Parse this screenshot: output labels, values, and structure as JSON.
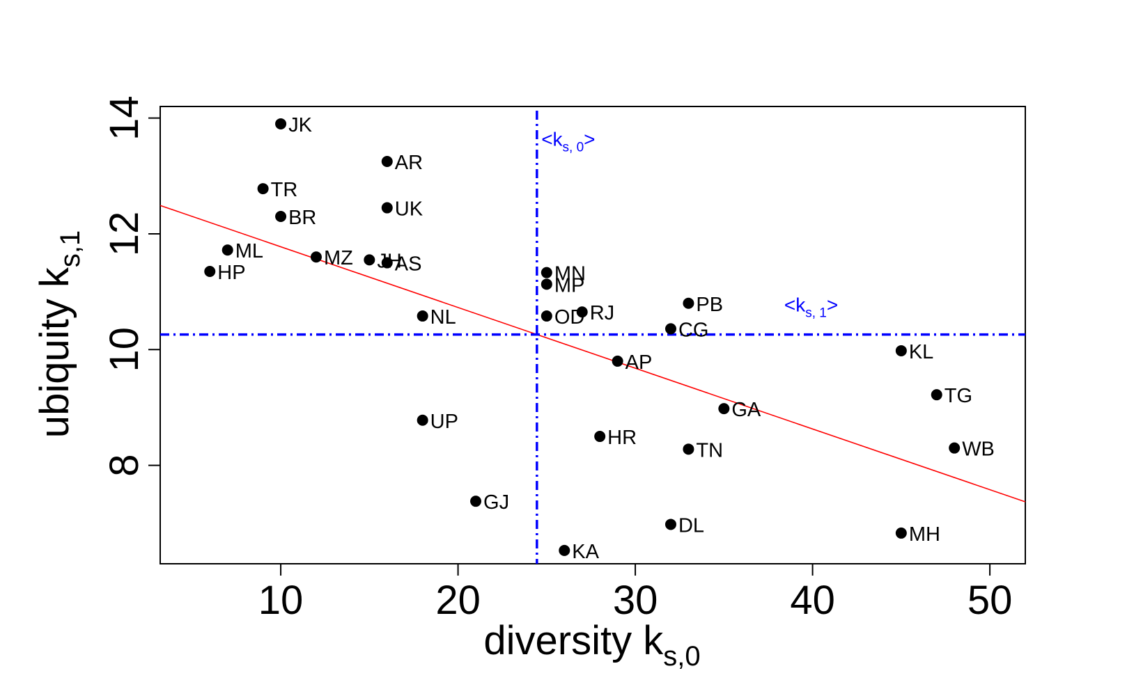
{
  "chart_data": {
    "type": "scatter",
    "title": "",
    "xlabel": {
      "main": "diversity k",
      "sub": "s,0"
    },
    "ylabel": {
      "main": "ubiquity k",
      "sub": "s,1"
    },
    "xlim": [
      3.2,
      52
    ],
    "ylim": [
      6.3,
      14.2
    ],
    "xticks": [
      10,
      20,
      30,
      40,
      50
    ],
    "yticks": [
      8,
      10,
      12,
      14
    ],
    "points": [
      {
        "label": "JK",
        "x": 10,
        "y": 13.9
      },
      {
        "label": "AR",
        "x": 16,
        "y": 13.25
      },
      {
        "label": "TR",
        "x": 9,
        "y": 12.78
      },
      {
        "label": "UK",
        "x": 16,
        "y": 12.45
      },
      {
        "label": "BR",
        "x": 10,
        "y": 12.3
      },
      {
        "label": "ML",
        "x": 7,
        "y": 11.72
      },
      {
        "label": "MZ",
        "x": 12,
        "y": 11.6
      },
      {
        "label": "JH",
        "x": 15,
        "y": 11.55
      },
      {
        "label": "AS",
        "x": 16,
        "y": 11.5
      },
      {
        "label": "HP",
        "x": 6,
        "y": 11.35
      },
      {
        "label": "MN",
        "x": 25,
        "y": 11.33
      },
      {
        "label": "MP",
        "x": 25,
        "y": 11.13
      },
      {
        "label": "PB",
        "x": 33,
        "y": 10.8
      },
      {
        "label": "RJ",
        "x": 27,
        "y": 10.65
      },
      {
        "label": "NL",
        "x": 18,
        "y": 10.58
      },
      {
        "label": "OD",
        "x": 25,
        "y": 10.58
      },
      {
        "label": "CG",
        "x": 32,
        "y": 10.36
      },
      {
        "label": "KL",
        "x": 45,
        "y": 9.98
      },
      {
        "label": "AP",
        "x": 29,
        "y": 9.8
      },
      {
        "label": "TG",
        "x": 47,
        "y": 9.22
      },
      {
        "label": "GA",
        "x": 35,
        "y": 8.98
      },
      {
        "label": "UP",
        "x": 18,
        "y": 8.78
      },
      {
        "label": "HR",
        "x": 28,
        "y": 8.5
      },
      {
        "label": "WB",
        "x": 48,
        "y": 8.3
      },
      {
        "label": "TN",
        "x": 33,
        "y": 8.28
      },
      {
        "label": "GJ",
        "x": 21,
        "y": 7.38
      },
      {
        "label": "DL",
        "x": 32,
        "y": 6.98
      },
      {
        "label": "MH",
        "x": 45,
        "y": 6.83
      },
      {
        "label": "KA",
        "x": 26,
        "y": 6.53
      }
    ],
    "regression_line": {
      "color": "#ff0000",
      "x1": 3.2,
      "y1": 12.49,
      "x2": 52,
      "y2": 7.37
    },
    "mean_lines": [
      {
        "axis": "x",
        "value": 24.45,
        "label": {
          "main": "<k",
          "sub": "s, 0",
          "close": ">"
        },
        "label_x": 24.7,
        "label_y": 13.52
      },
      {
        "axis": "y",
        "value": 10.26,
        "label": {
          "main": "<k",
          "sub": "s, 1",
          "close": ">"
        },
        "label_x": 38.4,
        "label_y": 10.66
      }
    ],
    "colors": {
      "points": "#000000",
      "regression": "#ff0000",
      "mean_lines": "#0000ff",
      "axes": "#000000"
    }
  }
}
